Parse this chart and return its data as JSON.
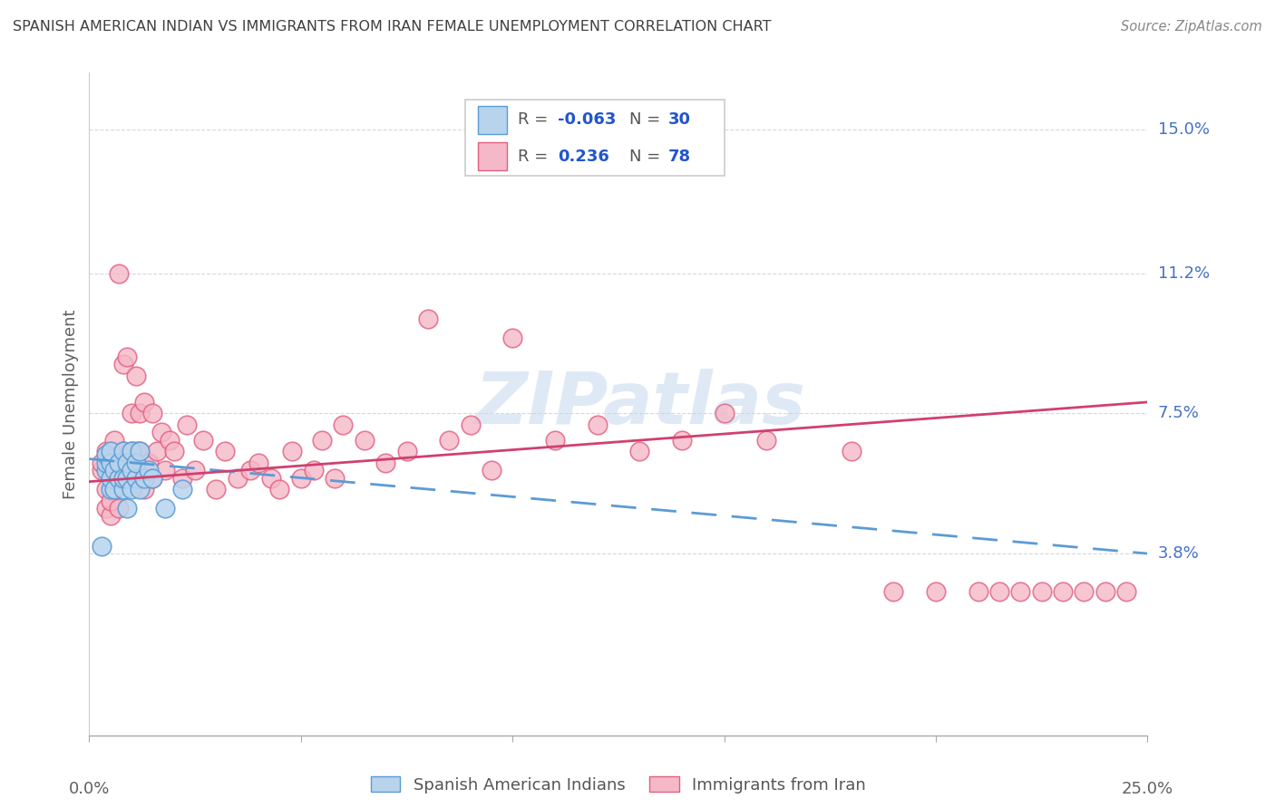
{
  "title": "SPANISH AMERICAN INDIAN VS IMMIGRANTS FROM IRAN FEMALE UNEMPLOYMENT CORRELATION CHART",
  "source": "Source: ZipAtlas.com",
  "ylabel": "Female Unemployment",
  "ytick_labels": [
    "15.0%",
    "11.2%",
    "7.5%",
    "3.8%"
  ],
  "ytick_values": [
    0.15,
    0.112,
    0.075,
    0.038
  ],
  "xlim": [
    0.0,
    0.25
  ],
  "ylim": [
    -0.01,
    0.165
  ],
  "series1_label": "Spanish American Indians",
  "series2_label": "Immigrants from Iran",
  "series1_color": "#b8d4ed",
  "series2_color": "#f5b8c8",
  "series1_edge_color": "#5b9bd5",
  "series2_edge_color": "#e06080",
  "trendline1_color": "#5b9bd5",
  "trendline2_color": "#d04070",
  "watermark_text": "ZIPatlas",
  "background_color": "#ffffff",
  "grid_color": "#d8d8d8",
  "title_color": "#404040",
  "axis_label_color": "#606060",
  "ytick_color": "#4472c4",
  "legend_R1": "-0.063",
  "legend_N1": "30",
  "legend_R2": "0.236",
  "legend_N2": "78",
  "series1_x": [
    0.003,
    0.004,
    0.004,
    0.004,
    0.005,
    0.005,
    0.005,
    0.005,
    0.006,
    0.006,
    0.007,
    0.007,
    0.008,
    0.008,
    0.008,
    0.009,
    0.009,
    0.009,
    0.01,
    0.01,
    0.01,
    0.011,
    0.011,
    0.012,
    0.012,
    0.013,
    0.014,
    0.015,
    0.018,
    0.022
  ],
  "series1_y": [
    0.04,
    0.06,
    0.062,
    0.064,
    0.055,
    0.058,
    0.062,
    0.065,
    0.055,
    0.06,
    0.058,
    0.062,
    0.055,
    0.058,
    0.065,
    0.05,
    0.058,
    0.062,
    0.055,
    0.06,
    0.065,
    0.058,
    0.062,
    0.055,
    0.065,
    0.058,
    0.06,
    0.058,
    0.05,
    0.055
  ],
  "series2_x": [
    0.003,
    0.003,
    0.004,
    0.004,
    0.004,
    0.005,
    0.005,
    0.005,
    0.005,
    0.006,
    0.006,
    0.007,
    0.007,
    0.007,
    0.008,
    0.008,
    0.008,
    0.009,
    0.009,
    0.01,
    0.01,
    0.01,
    0.011,
    0.011,
    0.012,
    0.012,
    0.013,
    0.013,
    0.014,
    0.015,
    0.015,
    0.016,
    0.017,
    0.018,
    0.019,
    0.02,
    0.022,
    0.023,
    0.025,
    0.027,
    0.03,
    0.032,
    0.035,
    0.038,
    0.04,
    0.043,
    0.045,
    0.048,
    0.05,
    0.053,
    0.055,
    0.058,
    0.06,
    0.065,
    0.07,
    0.075,
    0.08,
    0.085,
    0.09,
    0.095,
    0.1,
    0.11,
    0.12,
    0.13,
    0.14,
    0.15,
    0.16,
    0.18,
    0.19,
    0.2,
    0.21,
    0.215,
    0.22,
    0.225,
    0.23,
    0.235,
    0.24,
    0.245
  ],
  "series2_y": [
    0.06,
    0.062,
    0.05,
    0.055,
    0.065,
    0.048,
    0.052,
    0.06,
    0.065,
    0.055,
    0.068,
    0.05,
    0.06,
    0.112,
    0.058,
    0.065,
    0.088,
    0.062,
    0.09,
    0.058,
    0.065,
    0.075,
    0.065,
    0.085,
    0.065,
    0.075,
    0.055,
    0.078,
    0.062,
    0.058,
    0.075,
    0.065,
    0.07,
    0.06,
    0.068,
    0.065,
    0.058,
    0.072,
    0.06,
    0.068,
    0.055,
    0.065,
    0.058,
    0.06,
    0.062,
    0.058,
    0.055,
    0.065,
    0.058,
    0.06,
    0.068,
    0.058,
    0.072,
    0.068,
    0.062,
    0.065,
    0.1,
    0.068,
    0.072,
    0.06,
    0.095,
    0.068,
    0.072,
    0.065,
    0.068,
    0.075,
    0.068,
    0.065,
    0.028,
    0.028,
    0.028,
    0.028,
    0.028,
    0.028,
    0.028,
    0.028,
    0.028,
    0.028
  ]
}
